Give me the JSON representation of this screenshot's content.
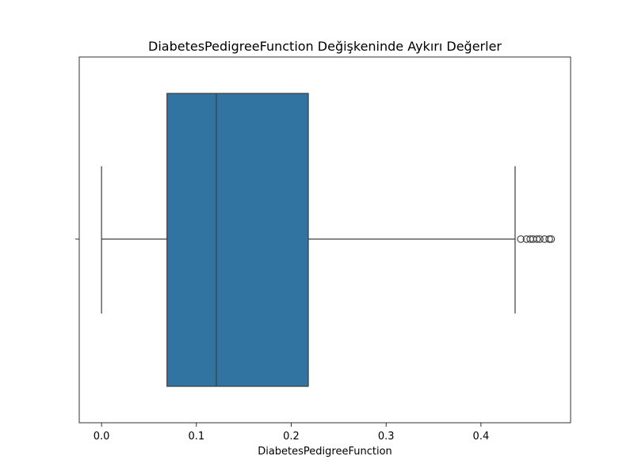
{
  "chart_data": {
    "type": "box",
    "title": "DiabetesPedigreeFunction Değişkeninde Aykırı Değerler",
    "xlabel": "DiabetesPedigreeFunction",
    "ylabel": "",
    "xlim": [
      -0.0235,
      0.4945
    ],
    "x_ticks": [
      0.0,
      0.1,
      0.2,
      0.3,
      0.4
    ],
    "x_tick_labels": [
      "0.0",
      "0.1",
      "0.2",
      "0.3",
      "0.4"
    ],
    "grid": false,
    "box": {
      "whisker_low": 0.0,
      "q1": 0.069,
      "median": 0.121,
      "q3": 0.218,
      "whisker_high": 0.436
    },
    "outliers": [
      0.442,
      0.448,
      0.452,
      0.455,
      0.459,
      0.462,
      0.467,
      0.472,
      0.474
    ],
    "colors": {
      "box_fill": "#3274a1",
      "line": "#3d3d3d",
      "outlier_edge": "#3d3d3d"
    }
  }
}
